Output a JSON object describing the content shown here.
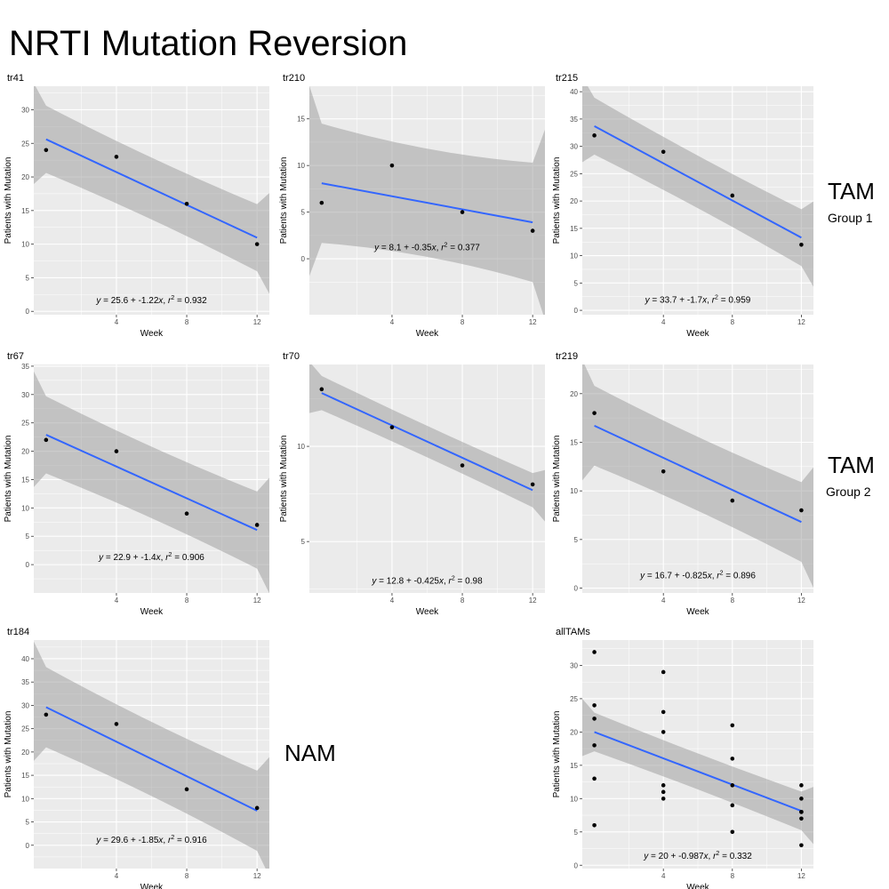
{
  "title": "NRTI Mutation Reversion",
  "group_labels": [
    {
      "big": "TAM",
      "small": "Group 1"
    },
    {
      "big": "TAM",
      "small": "Group 2"
    },
    {
      "big": "NAM",
      "small": ""
    }
  ],
  "x_axis_label": "Week",
  "y_axis_label": "Patients with Mutation",
  "chart_data": [
    {
      "type": "scatter",
      "title": "tr41",
      "xlabel": "Week",
      "ylabel": "Patients with Mutation",
      "x": [
        0,
        4,
        8,
        12
      ],
      "y": [
        24,
        23,
        16,
        10
      ],
      "xlim": [
        -0.7,
        12.7
      ],
      "ylim": [
        -0.5,
        33.5
      ],
      "xticks": [
        4,
        8,
        12
      ],
      "yticks": [
        0,
        5,
        10,
        15,
        20,
        25,
        30
      ],
      "fit": {
        "intercept": 25.6,
        "slope": -1.22,
        "r2": 0.932,
        "ci_half": [
          7.5,
          5.0,
          4.2,
          5.0,
          7.5
        ]
      },
      "equation": {
        "lhs": "y",
        "rhs": " = 25.6 + -1.22",
        "var": "x",
        "sep": ",  ",
        "r": "r",
        "exp": "2",
        "val": " = 0.932",
        "ypos": 1.2
      }
    },
    {
      "type": "scatter",
      "title": "tr210",
      "xlabel": "Week",
      "ylabel": "Patients with Mutation",
      "x": [
        0,
        4,
        8,
        12
      ],
      "y": [
        6,
        10,
        5,
        3
      ],
      "xlim": [
        -0.7,
        12.7
      ],
      "ylim": [
        -6,
        18.5
      ],
      "xticks": [
        4,
        8,
        12
      ],
      "yticks": [
        0,
        5,
        10,
        15
      ],
      "fit": {
        "intercept": 8.1,
        "slope": -0.35,
        "r2": 0.377,
        "ci_half": [
          10.2,
          6.4,
          5.2,
          6.4,
          10.2
        ]
      },
      "equation": {
        "lhs": "y",
        "rhs": " = 8.1 + -0.35",
        "var": "x",
        "sep": ",  ",
        "r": "r",
        "exp": "2",
        "val": " = 0.377",
        "ypos": 0.9
      }
    },
    {
      "type": "scatter",
      "title": "tr215",
      "xlabel": "Week",
      "ylabel": "Patients with Mutation",
      "x": [
        0,
        4,
        8,
        12
      ],
      "y": [
        32,
        29,
        21,
        12
      ],
      "xlim": [
        -0.7,
        12.7
      ],
      "ylim": [
        -0.8,
        41
      ],
      "xticks": [
        4,
        8,
        12
      ],
      "yticks": [
        0,
        5,
        10,
        15,
        20,
        25,
        30,
        35,
        40
      ],
      "fit": {
        "intercept": 33.7,
        "slope": -1.7,
        "r2": 0.959,
        "ci_half": [
          7.8,
          5.2,
          4.4,
          5.2,
          7.8
        ]
      },
      "equation": {
        "lhs": "y",
        "rhs": " = 33.7 + -1.7",
        "var": "x",
        "sep": ",  ",
        "r": "r",
        "exp": "2",
        "val": " = 0.959",
        "ypos": 1.4
      }
    },
    {
      "type": "scatter",
      "title": "tr67",
      "xlabel": "Week",
      "ylabel": "Patients with Mutation",
      "x": [
        0,
        4,
        8,
        12
      ],
      "y": [
        22,
        20,
        9,
        7
      ],
      "xlim": [
        -0.7,
        12.7
      ],
      "ylim": [
        -5,
        35.3
      ],
      "xticks": [
        4,
        8,
        12
      ],
      "yticks": [
        0,
        5,
        10,
        15,
        20,
        25,
        30,
        35
      ],
      "fit": {
        "intercept": 22.9,
        "slope": -1.4,
        "r2": 0.906,
        "ci_half": [
          10.2,
          6.8,
          5.8,
          6.8,
          10.2
        ]
      },
      "equation": {
        "lhs": "y",
        "rhs": " = 22.9 + -1.4",
        "var": "x",
        "sep": ",  ",
        "r": "r",
        "exp": "2",
        "val": " = 0.906",
        "ypos": 0.8
      }
    },
    {
      "type": "scatter",
      "title": "tr70",
      "xlabel": "Week",
      "ylabel": "Patients with Mutation",
      "x": [
        0,
        4,
        8,
        12
      ],
      "y": [
        13,
        11,
        9,
        8
      ],
      "xlim": [
        -0.7,
        12.7
      ],
      "ylim": [
        2.3,
        14.3
      ],
      "xticks": [
        4,
        8,
        12
      ],
      "yticks": [
        5,
        10
      ],
      "fit": {
        "intercept": 12.8,
        "slope": -0.425,
        "r2": 0.98,
        "ci_half": [
          1.35,
          0.9,
          0.75,
          0.9,
          1.35
        ]
      },
      "equation": {
        "lhs": "y",
        "rhs": " = 12.8 + -0.425",
        "var": "x",
        "sep": ",  ",
        "r": "r",
        "exp": "2",
        "val": " = 0.98",
        "ypos": 2.8
      }
    },
    {
      "type": "scatter",
      "title": "tr219",
      "xlabel": "Week",
      "ylabel": "Patients with Mutation",
      "x": [
        0,
        4,
        8,
        12
      ],
      "y": [
        18,
        12,
        9,
        8
      ],
      "xlim": [
        -0.7,
        12.7
      ],
      "ylim": [
        -0.5,
        23
      ],
      "xticks": [
        4,
        8,
        12
      ],
      "yticks": [
        0,
        5,
        10,
        15,
        20
      ],
      "fit": {
        "intercept": 16.7,
        "slope": -0.825,
        "r2": 0.896,
        "ci_half": [
          6.2,
          4.1,
          3.5,
          4.1,
          6.2
        ]
      },
      "equation": {
        "lhs": "y",
        "rhs": " = 16.7 + -0.825",
        "var": "x",
        "sep": ",  ",
        "r": "r",
        "exp": "2",
        "val": " = 0.896",
        "ypos": 1.0
      }
    },
    {
      "type": "scatter",
      "title": "tr184",
      "xlabel": "Week",
      "ylabel": "Patients with Mutation",
      "x": [
        0,
        4,
        8,
        12
      ],
      "y": [
        28,
        26,
        12,
        8
      ],
      "xlim": [
        -0.7,
        12.7
      ],
      "ylim": [
        -5,
        44
      ],
      "xticks": [
        4,
        8,
        12
      ],
      "yticks": [
        0,
        5,
        10,
        15,
        20,
        25,
        30,
        35,
        40
      ],
      "fit": {
        "intercept": 29.6,
        "slope": -1.85,
        "r2": 0.916,
        "ci_half": [
          12.8,
          8.6,
          7.3,
          8.6,
          12.8
        ]
      },
      "equation": {
        "lhs": "y",
        "rhs": " = 29.6 + -1.85",
        "var": "x",
        "sep": ",  ",
        "r": "r",
        "exp": "2",
        "val": " = 0.916",
        "ypos": 0.5
      }
    },
    {
      "type": "scatter",
      "title": "allTAMs",
      "xlabel": "Week",
      "ylabel": "Patients with Mutation",
      "x": [
        0,
        0,
        0,
        0,
        0,
        0,
        4,
        4,
        4,
        4,
        4,
        4,
        8,
        8,
        8,
        8,
        8,
        12,
        12,
        12,
        12,
        12,
        12
      ],
      "y": [
        32,
        24,
        22,
        18,
        13,
        6,
        29,
        23,
        20,
        12,
        11,
        10,
        21,
        16,
        12,
        9,
        5,
        12,
        10,
        8,
        8,
        7,
        3
      ],
      "xlim": [
        -0.7,
        12.7
      ],
      "ylim": [
        -0.5,
        33.8
      ],
      "xticks": [
        4,
        8,
        12
      ],
      "yticks": [
        0,
        5,
        10,
        15,
        20,
        25,
        30
      ],
      "fit": {
        "intercept": 20,
        "slope": -0.987,
        "r2": 0.332,
        "ci_half": [
          4.3,
          2.9,
          2.5,
          2.9,
          4.3
        ]
      },
      "equation": {
        "lhs": "y",
        "rhs": " = 20 + -0.987",
        "var": "x",
        "sep": ",  ",
        "r": "r",
        "exp": "2",
        "val": " = 0.332",
        "ypos": 1.0
      }
    }
  ]
}
